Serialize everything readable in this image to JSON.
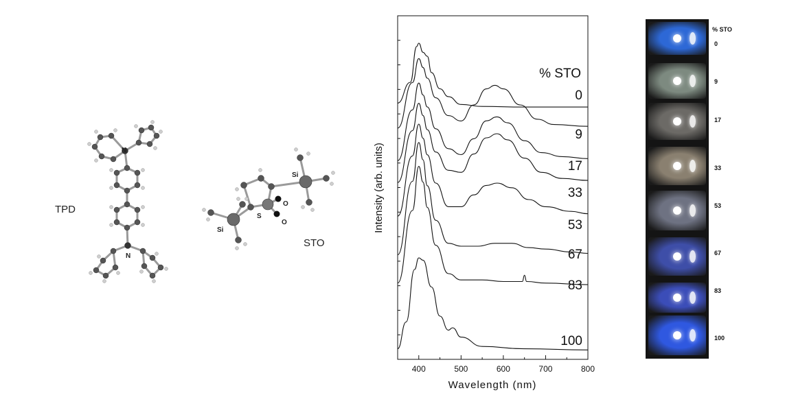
{
  "molecules": {
    "tpd_label": "TPD",
    "sto_label": "STO",
    "atoms": {
      "n_top": "N",
      "n_bottom": "N",
      "si_left": "Si",
      "si_right": "Si",
      "s": "S",
      "o_top": "O",
      "o_bottom": "O"
    }
  },
  "chart_data": {
    "type": "line",
    "xlabel": "Wavelength (nm)",
    "ylabel": "Intensity (arb. units)",
    "xlim": [
      350,
      800
    ],
    "xticks": [
      400,
      500,
      600,
      700,
      800
    ],
    "legend_title": "% STO",
    "y_ticks_labeled": false,
    "series": [
      {
        "name": "0",
        "points": [
          [
            350,
            0.08
          ],
          [
            380,
            0.4
          ],
          [
            395,
            0.95
          ],
          [
            400,
            1.0
          ],
          [
            410,
            0.86
          ],
          [
            420,
            0.8
          ],
          [
            430,
            0.55
          ],
          [
            450,
            0.3
          ],
          [
            470,
            0.18
          ],
          [
            500,
            0.06
          ],
          [
            550,
            0.03
          ],
          [
            650,
            0.02
          ],
          [
            800,
            0.02
          ]
        ]
      },
      {
        "name": "9",
        "points": [
          [
            350,
            0.04
          ],
          [
            385,
            0.55
          ],
          [
            400,
            0.82
          ],
          [
            410,
            0.72
          ],
          [
            420,
            0.6
          ],
          [
            440,
            0.38
          ],
          [
            470,
            0.18
          ],
          [
            500,
            0.12
          ],
          [
            530,
            0.3
          ],
          [
            560,
            0.48
          ],
          [
            580,
            0.52
          ],
          [
            600,
            0.48
          ],
          [
            640,
            0.3
          ],
          [
            680,
            0.14
          ],
          [
            720,
            0.08
          ],
          [
            800,
            0.06
          ]
        ]
      },
      {
        "name": "17",
        "points": [
          [
            350,
            0.04
          ],
          [
            385,
            0.55
          ],
          [
            400,
            0.82
          ],
          [
            410,
            0.7
          ],
          [
            420,
            0.58
          ],
          [
            440,
            0.36
          ],
          [
            470,
            0.16
          ],
          [
            500,
            0.1
          ],
          [
            530,
            0.26
          ],
          [
            560,
            0.44
          ],
          [
            585,
            0.48
          ],
          [
            610,
            0.42
          ],
          [
            650,
            0.24
          ],
          [
            690,
            0.12
          ],
          [
            740,
            0.08
          ],
          [
            800,
            0.06
          ]
        ]
      },
      {
        "name": "33",
        "points": [
          [
            350,
            0.04
          ],
          [
            385,
            0.55
          ],
          [
            400,
            0.82
          ],
          [
            410,
            0.7
          ],
          [
            420,
            0.56
          ],
          [
            440,
            0.34
          ],
          [
            470,
            0.16
          ],
          [
            500,
            0.14
          ],
          [
            530,
            0.32
          ],
          [
            560,
            0.48
          ],
          [
            585,
            0.52
          ],
          [
            610,
            0.46
          ],
          [
            650,
            0.28
          ],
          [
            690,
            0.14
          ],
          [
            740,
            0.08
          ],
          [
            800,
            0.06
          ]
        ]
      },
      {
        "name": "53",
        "points": [
          [
            350,
            0.04
          ],
          [
            385,
            0.55
          ],
          [
            400,
            0.82
          ],
          [
            410,
            0.7
          ],
          [
            420,
            0.56
          ],
          [
            440,
            0.32
          ],
          [
            470,
            0.12
          ],
          [
            500,
            0.12
          ],
          [
            530,
            0.22
          ],
          [
            560,
            0.3
          ],
          [
            585,
            0.32
          ],
          [
            620,
            0.28
          ],
          [
            660,
            0.18
          ],
          [
            700,
            0.12
          ],
          [
            760,
            0.08
          ],
          [
            800,
            0.06
          ]
        ]
      },
      {
        "name": "67",
        "points": [
          [
            350,
            0.04
          ],
          [
            385,
            0.55
          ],
          [
            400,
            0.82
          ],
          [
            410,
            0.7
          ],
          [
            420,
            0.52
          ],
          [
            440,
            0.28
          ],
          [
            470,
            0.12
          ],
          [
            500,
            0.1
          ],
          [
            540,
            0.1
          ],
          [
            580,
            0.12
          ],
          [
            620,
            0.12
          ],
          [
            660,
            0.09
          ],
          [
            700,
            0.08
          ],
          [
            760,
            0.06
          ],
          [
            800,
            0.05
          ]
        ]
      },
      {
        "name": "83",
        "points": [
          [
            350,
            0.04
          ],
          [
            385,
            0.5
          ],
          [
            400,
            0.78
          ],
          [
            410,
            0.68
          ],
          [
            420,
            0.52
          ],
          [
            440,
            0.28
          ],
          [
            470,
            0.1
          ],
          [
            500,
            0.06
          ],
          [
            550,
            0.06
          ],
          [
            600,
            0.05
          ],
          [
            645,
            0.05
          ],
          [
            650,
            0.09
          ],
          [
            655,
            0.05
          ],
          [
            700,
            0.04
          ],
          [
            800,
            0.03
          ]
        ]
      },
      {
        "name": "100",
        "points": [
          [
            350,
            0.02
          ],
          [
            370,
            0.25
          ],
          [
            390,
            0.7
          ],
          [
            400,
            0.8
          ],
          [
            410,
            0.78
          ],
          [
            430,
            0.55
          ],
          [
            450,
            0.3
          ],
          [
            470,
            0.18
          ],
          [
            480,
            0.2
          ],
          [
            500,
            0.12
          ],
          [
            550,
            0.04
          ],
          [
            650,
            0.02
          ],
          [
            800,
            0.01
          ]
        ]
      }
    ]
  },
  "photo_strip": {
    "header": "% STO",
    "items": [
      {
        "label": "0",
        "color": "#2d68d6"
      },
      {
        "label": "9",
        "color": "#7d8a80"
      },
      {
        "label": "17",
        "color": "#6c6a66"
      },
      {
        "label": "33",
        "color": "#8a8070"
      },
      {
        "label": "53",
        "color": "#6e7282"
      },
      {
        "label": "67",
        "color": "#3e4ea8"
      },
      {
        "label": "83",
        "color": "#3b4db8"
      },
      {
        "label": "100",
        "color": "#2f58e0"
      }
    ]
  }
}
